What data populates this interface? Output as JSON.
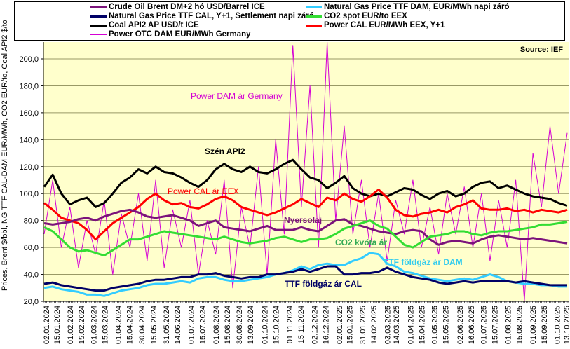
{
  "chart_data": {
    "type": "line",
    "title": "",
    "source": "Source:  IEF",
    "ylabel": "Prices, Brent $/bbl, NG TTF CAL-DAM EUR/MWh, CO2 EUR/to, Coal API2 $/to",
    "xlabel": "",
    "ylim": [
      20,
      215
    ],
    "yticks": [
      "20,0",
      "40,0",
      "60,0",
      "80,0",
      "100,0",
      "120,0",
      "140,0",
      "160,0",
      "180,0",
      "200,0"
    ],
    "ytick_values": [
      20,
      40,
      60,
      80,
      100,
      120,
      140,
      160,
      180,
      200
    ],
    "grid": true,
    "legend_position": "top",
    "xticks": [
      "02.01.2024",
      "15.01.2024",
      "01.02.2024",
      "15.02.2024",
      "01.03.2024",
      "15.03.2024",
      "01.04.2024",
      "15.04.2024",
      "30.04.2024",
      "15.05.2024",
      "31.05.2024",
      "14.06.2024",
      "01.07.2024",
      "15.07.2024",
      "01.08.2024",
      "15.08.2024",
      "30.08.2024",
      "13.09.2024",
      "01.10.2024",
      "15.10.2024",
      "01.11.2024",
      "15.11.2024",
      "02.12.2024",
      "16.12.2024",
      "02.01.2025",
      "15.01.2025",
      "31.01.2025",
      "14.02.2025",
      "03.03.2025",
      "14.03.2025",
      "01.04.2025",
      "15.04.2025",
      "01.05.2025",
      "15.05.2025",
      "02.06.2025",
      "16.06.2025",
      "01.07.2025",
      "15.07.2025",
      "01.08.2025",
      "15.08.2025",
      "01.09.2025",
      "15.09.2025",
      "01.10.2025",
      "13.10.2025"
    ],
    "x_range": [
      "02.01.2024",
      "13.10.2025"
    ],
    "series": [
      {
        "name": "Crude Oil Brent DM+2 hó USD/Barrel ICE",
        "color": "#7b137b",
        "width": 3,
        "values": [
          78,
          77,
          78,
          79,
          81,
          82,
          80,
          83,
          85,
          87,
          88,
          86,
          83,
          82,
          83,
          84,
          82,
          80,
          76,
          78,
          80,
          75,
          74,
          73,
          72,
          74,
          76,
          73,
          73,
          73,
          75,
          73,
          72,
          76,
          80,
          81,
          77,
          76,
          74,
          72,
          71,
          70,
          72,
          73,
          72,
          66,
          62,
          64,
          65,
          64,
          63,
          66,
          68,
          69,
          68,
          67,
          66,
          67,
          66,
          65,
          64,
          63
        ]
      },
      {
        "name": "Natural Gas Price TTF CAL, Y+1, Settlement napi záró",
        "color": "#000066",
        "width": 3,
        "values": [
          33,
          34,
          32,
          31,
          30,
          29,
          28,
          28,
          30,
          31,
          32,
          33,
          35,
          36,
          36,
          37,
          38,
          38,
          40,
          40,
          41,
          39,
          38,
          37,
          38,
          38,
          40,
          40,
          41,
          42,
          44,
          42,
          44,
          46,
          46,
          40,
          40,
          41,
          41,
          42,
          45,
          42,
          40,
          38,
          37,
          36,
          34,
          33,
          34,
          35,
          34,
          35,
          35,
          35,
          35,
          34,
          35,
          34,
          33,
          32,
          32,
          32
        ]
      },
      {
        "name": "Coal API2 AP USD/t ICE",
        "color": "#000000",
        "width": 3,
        "values": [
          105,
          114,
          100,
          92,
          95,
          97,
          90,
          93,
          100,
          108,
          112,
          118,
          115,
          120,
          116,
          115,
          112,
          108,
          105,
          110,
          118,
          122,
          118,
          116,
          120,
          116,
          115,
          118,
          122,
          125,
          118,
          112,
          110,
          104,
          108,
          113,
          104,
          100,
          98,
          100,
          98,
          101,
          104,
          103,
          99,
          96,
          100,
          102,
          98,
          100,
          105,
          108,
          109,
          104,
          106,
          103,
          100,
          98,
          97,
          96,
          93,
          91
        ]
      },
      {
        "name": "Power OTC DAM EUR/MWh Germany",
        "color": "#d400d4",
        "width": 1,
        "values": [
          70,
          110,
          60,
          90,
          45,
          80,
          55,
          95,
          40,
          85,
          60,
          100,
          50,
          110,
          45,
          88,
          60,
          95,
          40,
          80,
          55,
          110,
          30,
          90,
          60,
          120,
          40,
          140,
          70,
          210,
          90,
          180,
          60,
          215,
          80,
          150,
          70,
          110,
          60,
          100,
          50,
          95,
          70,
          110,
          60,
          90,
          55,
          100,
          70,
          105,
          60,
          100,
          50,
          95,
          60,
          110,
          20,
          130,
          90,
          150,
          100,
          145
        ]
      },
      {
        "name": "Natural Gas Price TTF DAM, EUR/MWh napi záró",
        "color": "#33ccff",
        "width": 3,
        "values": [
          30,
          31,
          29,
          28,
          27,
          25,
          25,
          24,
          26,
          28,
          29,
          30,
          32,
          33,
          33,
          34,
          35,
          34,
          37,
          38,
          38,
          36,
          35,
          35,
          36,
          37,
          38,
          40,
          41,
          43,
          46,
          44,
          47,
          48,
          47,
          47,
          50,
          52,
          56,
          55,
          48,
          46,
          42,
          41,
          39,
          37,
          36,
          35,
          36,
          37,
          36,
          38,
          40,
          38,
          35,
          34,
          33,
          33,
          32,
          32,
          31,
          31
        ]
      },
      {
        "name": "CO2 spot EUR/to EEX",
        "color": "#33dd33",
        "width": 3,
        "values": [
          75,
          72,
          66,
          60,
          57,
          58,
          56,
          54,
          58,
          62,
          66,
          66,
          68,
          70,
          72,
          71,
          70,
          69,
          68,
          67,
          66,
          68,
          66,
          64,
          63,
          64,
          65,
          67,
          68,
          66,
          64,
          66,
          66,
          67,
          70,
          74,
          76,
          78,
          80,
          76,
          74,
          68,
          62,
          60,
          64,
          68,
          69,
          70,
          72,
          72,
          70,
          69,
          71,
          72,
          72,
          73,
          74,
          75,
          77,
          77,
          78,
          79
        ]
      },
      {
        "name": "Power CAL EUR/MWh EEX, Y+1",
        "color": "#ff0000",
        "width": 3,
        "values": [
          93,
          88,
          82,
          80,
          78,
          73,
          66,
          72,
          78,
          82,
          86,
          90,
          96,
          100,
          95,
          92,
          93,
          90,
          89,
          92,
          96,
          98,
          95,
          90,
          88,
          86,
          84,
          86,
          89,
          92,
          96,
          93,
          90,
          97,
          95,
          100,
          96,
          94,
          98,
          103,
          97,
          88,
          84,
          83,
          85,
          86,
          88,
          86,
          90,
          92,
          95,
          89,
          88,
          88,
          89,
          87,
          88,
          86,
          88,
          87,
          86,
          88
        ]
      }
    ],
    "annotations": [
      {
        "text": "Power DAM  ár Germany",
        "color": "#d400d4"
      },
      {
        "text": "Szén API2",
        "color": "#000000"
      },
      {
        "text": "Power CAL ár EEX",
        "color": "#ff0000"
      },
      {
        "text": "Nyersolaj",
        "color": "#7b137b"
      },
      {
        "text": "CO2 kvóta ár",
        "color": "#33aa55"
      },
      {
        "text": "TTF földgáz ár DAM",
        "color": "#33ccee"
      },
      {
        "text": "TTF földgáz ár CAL",
        "color": "#000066"
      }
    ]
  },
  "colors": {
    "plot_bg": "#ffffcc",
    "grid": "#999966"
  }
}
